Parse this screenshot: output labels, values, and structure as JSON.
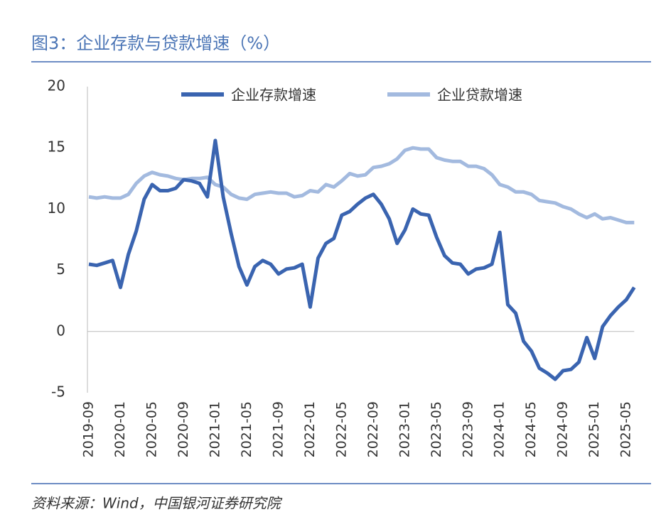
{
  "chart_data": {
    "type": "line",
    "title": "图3：企业存款与贷款增速（%）",
    "source": "资料来源：Wind，中国银河证券研究院",
    "categories": [
      "2019-09",
      null,
      null,
      null,
      "2020-01",
      null,
      null,
      null,
      "2020-05",
      null,
      null,
      null,
      "2020-09",
      null,
      null,
      null,
      "2021-01",
      null,
      null,
      null,
      "2021-05",
      null,
      null,
      null,
      "2021-09",
      null,
      null,
      null,
      "2022-01",
      null,
      null,
      null,
      "2022-05",
      null,
      null,
      null,
      "2022-09",
      null,
      null,
      null,
      "2023-01",
      null,
      null,
      null,
      "2023-05",
      null,
      null,
      null,
      "2023-09",
      null,
      null,
      null,
      "2024-01",
      null,
      null,
      null,
      "2024-05",
      null,
      null,
      null,
      "2024-09",
      null,
      null,
      null,
      "2025-01",
      null,
      null,
      null,
      "2025-05",
      null
    ],
    "series": [
      {
        "name": "企业存款增速",
        "color": "#3a64b0",
        "values": [
          5.5,
          5.4,
          5.6,
          5.8,
          3.6,
          6.3,
          8.2,
          10.8,
          12.0,
          11.5,
          11.5,
          11.7,
          12.4,
          12.3,
          12.1,
          11.0,
          15.6,
          11.0,
          8.0,
          5.3,
          3.8,
          5.3,
          5.8,
          5.5,
          4.7,
          5.1,
          5.2,
          5.5,
          2.0,
          6.0,
          7.2,
          7.6,
          9.5,
          9.8,
          10.4,
          10.9,
          11.2,
          10.4,
          9.2,
          7.2,
          8.3,
          10.0,
          9.6,
          9.5,
          7.7,
          6.2,
          5.6,
          5.5,
          4.7,
          5.1,
          5.2,
          5.5,
          8.1,
          2.2,
          1.5,
          -0.8,
          -1.6,
          -3.0,
          -3.4,
          -3.9,
          -3.2,
          -3.1,
          -2.5,
          -0.5,
          -2.2,
          0.4,
          1.3,
          2.0,
          2.6,
          3.6
        ]
      },
      {
        "name": "企业贷款增速",
        "color": "#a3badf",
        "values": [
          11.0,
          10.9,
          11.0,
          10.9,
          10.9,
          11.2,
          12.1,
          12.7,
          13.0,
          12.8,
          12.7,
          12.5,
          12.4,
          12.5,
          12.5,
          12.6,
          12.0,
          11.8,
          11.2,
          10.9,
          10.8,
          11.2,
          11.3,
          11.4,
          11.3,
          11.3,
          11.0,
          11.1,
          11.5,
          11.4,
          12.0,
          11.8,
          12.3,
          12.9,
          12.7,
          12.8,
          13.4,
          13.5,
          13.7,
          14.1,
          14.8,
          15.0,
          14.9,
          14.9,
          14.2,
          14.0,
          13.9,
          13.9,
          13.5,
          13.5,
          13.3,
          12.8,
          12.0,
          11.8,
          11.4,
          11.4,
          11.2,
          10.7,
          10.6,
          10.5,
          10.2,
          10.0,
          9.6,
          9.3,
          9.6,
          9.2,
          9.3,
          9.1,
          8.9,
          8.9
        ]
      }
    ],
    "ylim": [
      -5,
      20
    ],
    "yticks": [
      -5,
      0,
      5,
      10,
      15,
      20
    ],
    "grid": false
  }
}
